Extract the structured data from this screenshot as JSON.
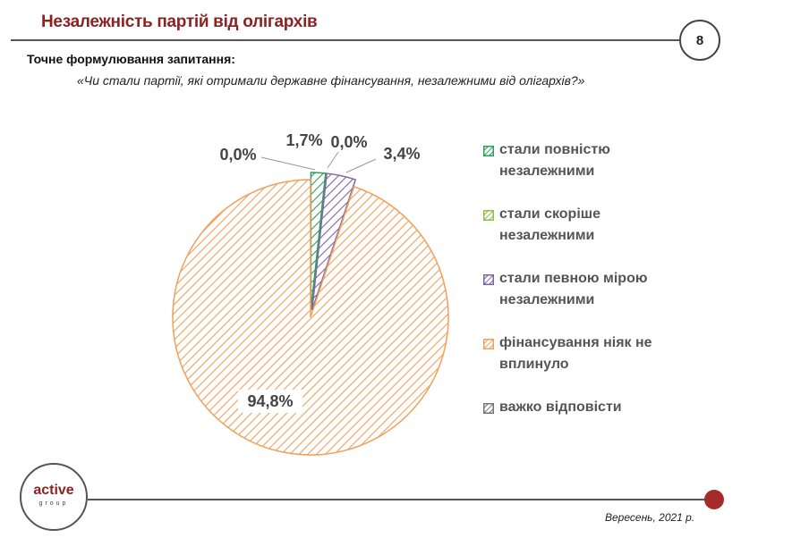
{
  "header": {
    "title": "Незалежність партій від олігархів",
    "page_number": "8"
  },
  "question": {
    "label": "Точне формулювання  запитання:",
    "text": "«Чи стали партії, які отримали державне фінансування, незалежними від олігархів?»"
  },
  "footer": {
    "logo_word": "active",
    "logo_sub": "group",
    "date": "Вересень, 2021 р."
  },
  "colors": {
    "title": "#8b2323",
    "accent_dot": "#a52a2a"
  },
  "chart_data": {
    "type": "pie",
    "slices": [
      {
        "label": "стали повністю незалежними",
        "value": 1.7,
        "display": "1,7%",
        "color": "#2e9e5b"
      },
      {
        "label": "стали скоріше незалежними",
        "value": 0.0,
        "display": "0,0%",
        "color": "#8fbf4a"
      },
      {
        "label": "стали певною мірою незалежними",
        "value": 3.4,
        "display": "3,4%",
        "color": "#7e64a8"
      },
      {
        "label": "фінансування ніяк не вплинуло",
        "value": 94.8,
        "display": "94,8%",
        "color": "#f0a05a"
      },
      {
        "label": "важко відповісти",
        "value": 0.0,
        "display": "0,0%",
        "color": "#777777"
      }
    ],
    "legend": [
      {
        "line1": "стали повністю",
        "line2": "незалежними"
      },
      {
        "line1": "стали скоріше",
        "line2": "незалежними"
      },
      {
        "line1": "стали певною мірою",
        "line2": "незалежними"
      },
      {
        "line1": "фінансування ніяк не",
        "line2": "вплинуло"
      },
      {
        "line1": "важко відповісти",
        "line2": ""
      }
    ],
    "legend_position": "right"
  }
}
